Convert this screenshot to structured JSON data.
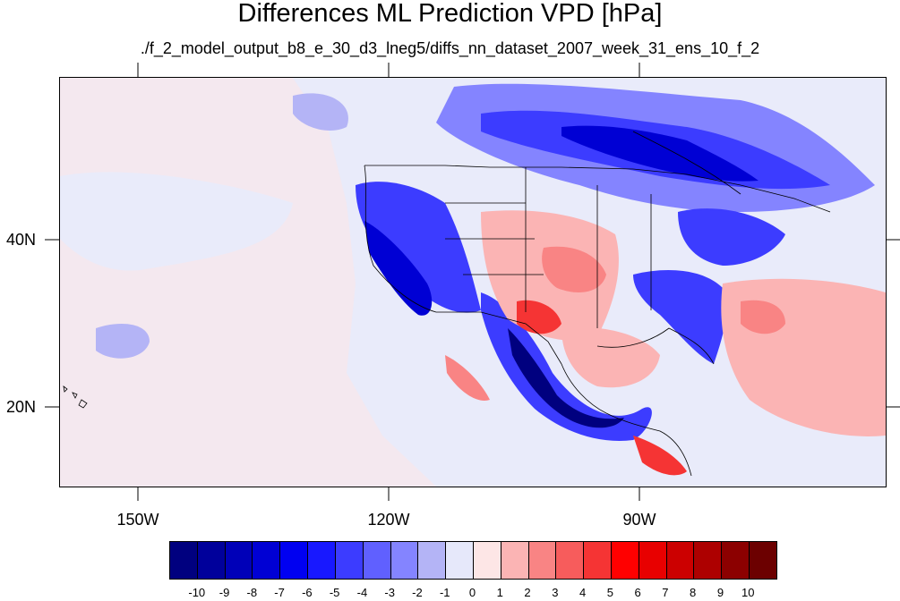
{
  "title": "Differences ML Prediction VPD [hPa]",
  "subtitle": "./f_2_model_output_b8_e_30_d3_lneg5/diffs_nn_dataset_2007_week_31_ens_10_f_2",
  "axes": {
    "y_labels": [
      "40N",
      "20N"
    ],
    "x_labels": [
      "150W",
      "120W",
      "90W"
    ]
  },
  "colorbar": {
    "labels": [
      "-10",
      "-9",
      "-8",
      "-7",
      "-6",
      "-5",
      "-4",
      "-3",
      "-2",
      "-1",
      "0",
      "1",
      "2",
      "3",
      "4",
      "5",
      "6",
      "7",
      "8",
      "9",
      "10"
    ],
    "colors": [
      "#00007f",
      "#00009b",
      "#0000b8",
      "#0000d4",
      "#0000f1",
      "#1818ff",
      "#3c3cff",
      "#6060ff",
      "#8484ff",
      "#b4b4f6",
      "#e6e8fa",
      "#fde6e6",
      "#fbb4b4",
      "#f98484",
      "#f75c5c",
      "#f53434",
      "#ff0000",
      "#e80000",
      "#cc0000",
      "#ad0000",
      "#8c0000",
      "#6c0000"
    ]
  },
  "map": {
    "colors": {
      "background": "#e9ebfa",
      "light_pink": "#fde6e6",
      "pink": "#fbb4b4",
      "light_red": "#f98484",
      "red": "#f53434",
      "light_blue": "#b4b4f6",
      "mid_blue": "#8484ff",
      "blue": "#3c3cff",
      "deep_blue": "#0000d4",
      "navy": "#00007f",
      "border": "#000000"
    }
  }
}
